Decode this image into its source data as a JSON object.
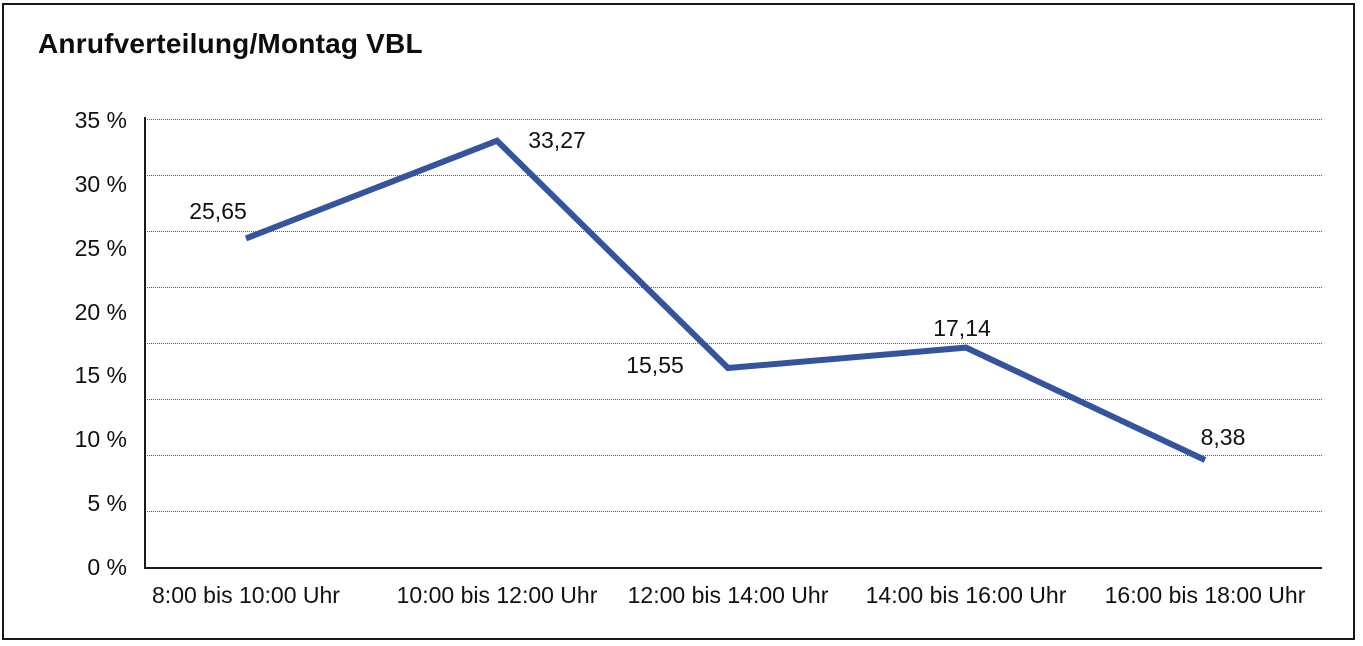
{
  "title": "Anrufverteilung/Montag VBL",
  "chart_data": {
    "type": "line",
    "title": "Anrufverteilung/Montag VBL",
    "categories": [
      "8:00 bis 10:00 Uhr",
      "10:00 bis 12:00 Uhr",
      "12:00 bis 14:00 Uhr",
      "14:00 bis 16:00 Uhr",
      "16:00 bis 18:00 Uhr"
    ],
    "values": [
      25.65,
      33.27,
      15.55,
      17.14,
      8.38
    ],
    "value_labels": [
      "25,65",
      "33,27",
      "15,55",
      "17,14",
      "8,38"
    ],
    "y_tick_labels": [
      "35 %",
      "30 %",
      "25 %",
      "20 %",
      "15 %",
      "10 %",
      "5 %",
      "0 %"
    ],
    "ylim": [
      0,
      35
    ],
    "xlabel": "",
    "ylabel": "",
    "grid": true,
    "gridline_style": "dotted",
    "legend": false,
    "line_color": "#34549E",
    "axis_color": "#1a1a1a",
    "decimal_separator": ","
  }
}
